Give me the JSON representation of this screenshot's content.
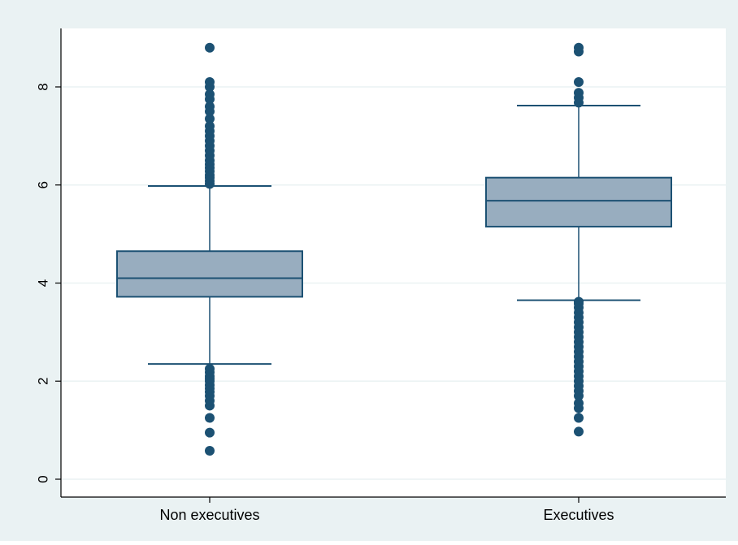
{
  "chart_data": {
    "type": "box",
    "title": "",
    "xlabel": "",
    "ylabel": "",
    "categories": [
      "Non executives",
      "Executives"
    ],
    "yticks": [
      "0",
      "2",
      "4",
      "6",
      "8"
    ],
    "ylim": [
      -0.3,
      9.2
    ],
    "grid": true,
    "legend": "none",
    "colors": {
      "outer_background": "#eaf2f3",
      "plot_background": "#ffffff",
      "box_fill": "#98adbf",
      "box_line": "#1c5173",
      "marker": "#1c5173",
      "grid": "#eaf2f3"
    },
    "boxes": [
      {
        "category": "Non executives",
        "whisker_low": 2.35,
        "q1": 3.72,
        "median": 4.1,
        "q3": 4.65,
        "whisker_high": 5.98,
        "outliers": [
          0.58,
          0.95,
          1.25,
          1.5,
          1.6,
          1.7,
          1.78,
          1.85,
          1.92,
          2.0,
          2.05,
          2.1,
          2.18,
          2.25,
          6.02,
          6.08,
          6.15,
          6.2,
          6.28,
          6.35,
          6.42,
          6.5,
          6.6,
          6.7,
          6.8,
          6.9,
          7.0,
          7.1,
          7.2,
          7.35,
          7.5,
          7.6,
          7.75,
          7.85,
          8.0,
          8.1,
          8.8
        ]
      },
      {
        "category": "Executives",
        "whisker_low": 3.65,
        "q1": 5.15,
        "median": 5.68,
        "q3": 6.15,
        "whisker_high": 7.62,
        "outliers": [
          0.97,
          1.25,
          1.45,
          1.55,
          1.7,
          1.8,
          1.9,
          2.0,
          2.1,
          2.2,
          2.3,
          2.4,
          2.5,
          2.6,
          2.7,
          2.8,
          2.9,
          3.0,
          3.1,
          3.2,
          3.3,
          3.4,
          3.5,
          3.58,
          3.62,
          7.68,
          7.78,
          7.88,
          8.1,
          8.72,
          8.8
        ]
      }
    ]
  }
}
